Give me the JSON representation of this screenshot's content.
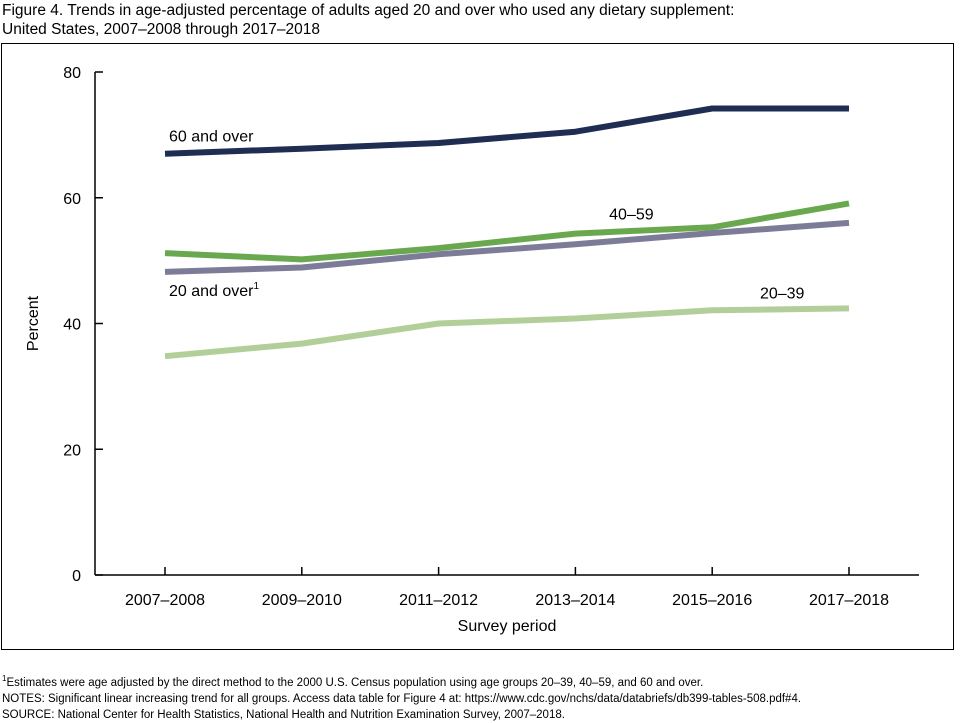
{
  "figure": {
    "title_line1": "Figure 4. Trends in age-adjusted percentage of adults aged 20 and over who used any dietary supplement:",
    "title_line2": "United States, 2007–2008 through 2017–2018"
  },
  "chart_data": {
    "type": "line",
    "title": "Trends in age-adjusted percentage of adults aged 20 and over who used any dietary supplement: United States, 2007–2008 through 2017–2018",
    "xlabel": "Survey period",
    "ylabel": "Percent",
    "categories": [
      "2007–2008",
      "2009–2010",
      "2011–2012",
      "2013–2014",
      "2015–2016",
      "2017–2018"
    ],
    "ylim": [
      0,
      80
    ],
    "yticks": [
      0,
      20,
      40,
      60,
      80
    ],
    "grid": false,
    "legend": "none (direct labels)",
    "series": [
      {
        "name": "60 and over",
        "color": "#1f2d52",
        "values": [
          67.0,
          67.8,
          68.7,
          70.5,
          74.2,
          74.2
        ]
      },
      {
        "name": "40–59",
        "color": "#6aa84f",
        "values": [
          51.2,
          50.2,
          52.0,
          54.3,
          55.3,
          59.1
        ]
      },
      {
        "name": "20 and over",
        "superscript": "1",
        "color": "#7c7c98",
        "values": [
          48.2,
          48.9,
          51.0,
          52.6,
          54.4,
          56.0
        ]
      },
      {
        "name": "20–39",
        "color": "#b3cf99",
        "values": [
          34.8,
          36.8,
          40.0,
          40.8,
          42.1,
          42.4
        ]
      }
    ]
  },
  "notes": {
    "footnote_marker": "1",
    "footnote": "Estimates were age adjusted by the direct method to the 2000 U.S. Census population using age groups 20–39, 40–59, and 60 and over.",
    "notes": "NOTES: Significant linear increasing trend for all groups. Access data table for Figure 4 at: https://www.cdc.gov/nchs/data/databriefs/db399-tables-508.pdf#4.",
    "source": "SOURCE: National Center for Health Statistics, National Health and Nutrition Examination Survey, 2007–2018."
  }
}
